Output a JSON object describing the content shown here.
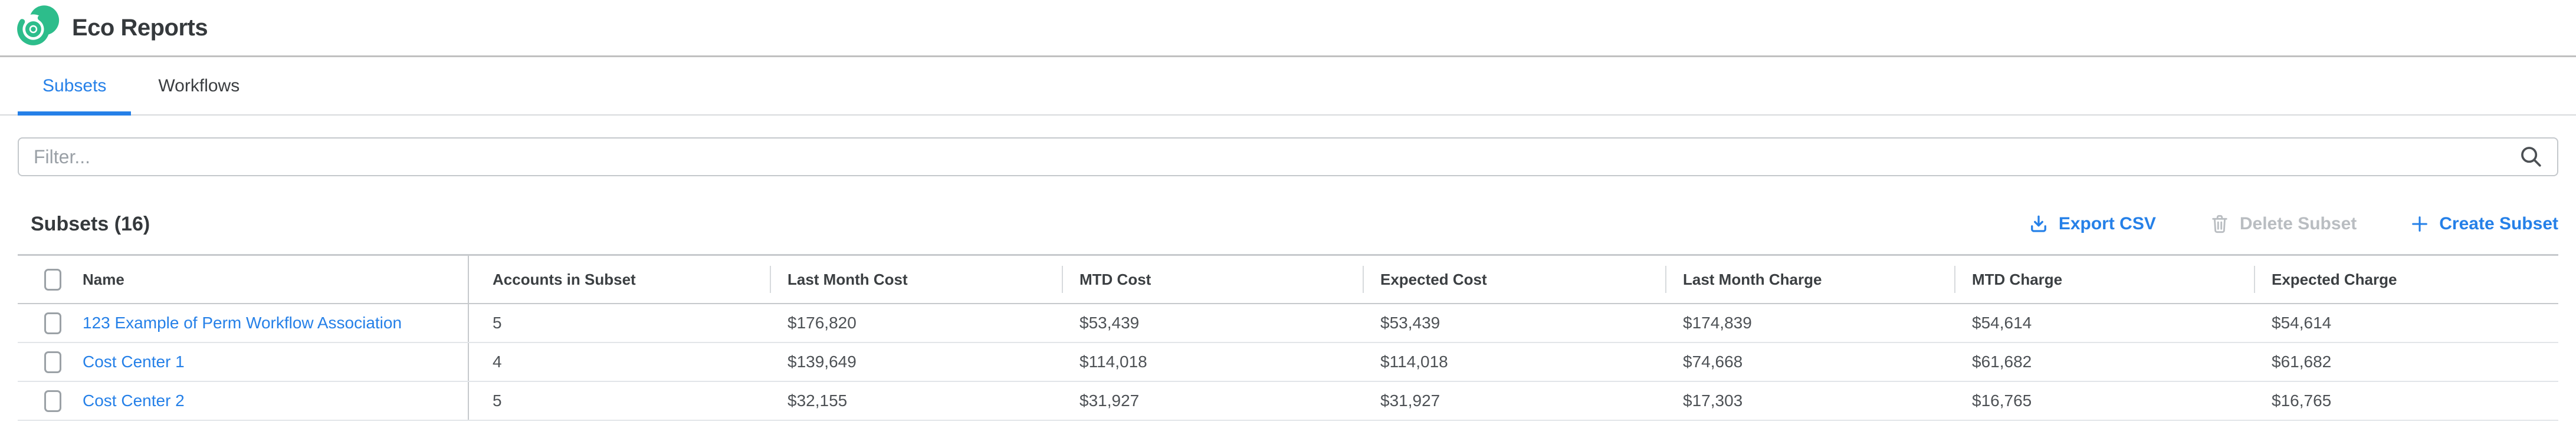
{
  "header": {
    "title": "Eco Reports",
    "logo_icon": "eco-spiral-logo"
  },
  "tabs": [
    {
      "label": "Subsets",
      "active": true
    },
    {
      "label": "Workflows",
      "active": false
    }
  ],
  "filter": {
    "placeholder": "Filter...",
    "value": "",
    "icon": "search-icon"
  },
  "toolbar": {
    "heading": "Subsets (16)",
    "export_csv": {
      "label": "Export CSV",
      "icon": "download-icon",
      "enabled": true
    },
    "delete_subset": {
      "label": "Delete Subset",
      "icon": "trash-icon",
      "enabled": false
    },
    "create_subset": {
      "label": "Create Subset",
      "icon": "plus-icon",
      "enabled": true
    }
  },
  "table": {
    "columns": [
      "Name",
      "Accounts in Subset",
      "Last Month Cost",
      "MTD Cost",
      "Expected Cost",
      "Last Month Charge",
      "MTD Charge",
      "Expected Charge"
    ],
    "rows": [
      {
        "name": "123 Example of Perm Workflow Association",
        "checked": false,
        "values": [
          "5",
          "$176,820",
          "$53,439",
          "$53,439",
          "$174,839",
          "$54,614",
          "$54,614"
        ]
      },
      {
        "name": "Cost Center 1",
        "checked": false,
        "values": [
          "4",
          "$139,649",
          "$114,018",
          "$114,018",
          "$74,668",
          "$61,682",
          "$61,682"
        ]
      },
      {
        "name": "Cost Center 2",
        "checked": false,
        "values": [
          "5",
          "$32,155",
          "$31,927",
          "$31,927",
          "$17,303",
          "$16,765",
          "$16,765"
        ]
      }
    ]
  },
  "colors": {
    "brand_green": "#2dbd8b",
    "accent_blue": "#2580e8",
    "disabled_gray": "#b9bdc1"
  }
}
